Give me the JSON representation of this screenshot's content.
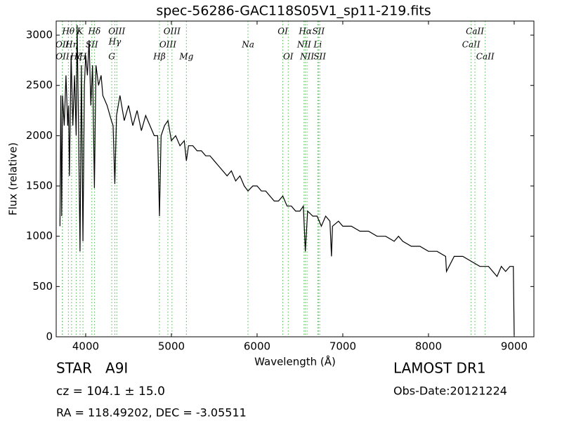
{
  "chart_data": {
    "type": "line",
    "title": "spec-56286-GAC118S05V1_sp11-219.fits",
    "xlabel": "Wavelength (Å)",
    "ylabel": "Flux (relative)",
    "xlim": [
      3656,
      9230
    ],
    "ylim": [
      0,
      3140
    ],
    "xticks": [
      4000,
      5000,
      6000,
      7000,
      8000,
      9000
    ],
    "yticks": [
      0,
      500,
      1000,
      1500,
      2000,
      2500,
      3000
    ],
    "color": "#000000",
    "x": [
      3700,
      3710,
      3720,
      3730,
      3750,
      3770,
      3790,
      3800,
      3810,
      3830,
      3850,
      3870,
      3889,
      3900,
      3915,
      3934,
      3950,
      3968,
      3985,
      4000,
      4020,
      4040,
      4060,
      4080,
      4102,
      4120,
      4150,
      4180,
      4200,
      4250,
      4300,
      4320,
      4340,
      4360,
      4400,
      4450,
      4500,
      4550,
      4600,
      4650,
      4700,
      4750,
      4800,
      4840,
      4861,
      4880,
      4920,
      4960,
      5000,
      5050,
      5100,
      5150,
      5175,
      5200,
      5250,
      5300,
      5350,
      5400,
      5450,
      5500,
      5550,
      5600,
      5650,
      5700,
      5750,
      5800,
      5850,
      5894,
      5950,
      6000,
      6050,
      6100,
      6150,
      6200,
      6250,
      6300,
      6350,
      6400,
      6450,
      6500,
      6540,
      6563,
      6590,
      6650,
      6700,
      6750,
      6800,
      6850,
      6868,
      6880,
      6950,
      7000,
      7100,
      7200,
      7300,
      7400,
      7500,
      7600,
      7650,
      7700,
      7800,
      7900,
      8000,
      8100,
      8200,
      8210,
      8300,
      8400,
      8500,
      8600,
      8700,
      8800,
      8850,
      8900,
      8950,
      8990,
      9000
    ],
    "values": [
      1100,
      2400,
      1200,
      2400,
      2100,
      2600,
      2100,
      2300,
      1600,
      2800,
      2100,
      2600,
      2000,
      3100,
      2200,
      850,
      2700,
      950,
      2500,
      2800,
      2600,
      2950,
      2300,
      2700,
      1480,
      2700,
      2500,
      2600,
      2400,
      2300,
      2150,
      2100,
      1520,
      2200,
      2400,
      2150,
      2300,
      2100,
      2250,
      2050,
      2200,
      2100,
      2000,
      2000,
      1200,
      2000,
      2100,
      2150,
      1950,
      2000,
      1900,
      1950,
      1750,
      1900,
      1900,
      1850,
      1850,
      1800,
      1800,
      1750,
      1700,
      1650,
      1600,
      1650,
      1550,
      1600,
      1500,
      1450,
      1500,
      1500,
      1450,
      1450,
      1400,
      1350,
      1350,
      1400,
      1300,
      1300,
      1250,
      1250,
      1300,
      850,
      1250,
      1200,
      1200,
      1100,
      1200,
      1150,
      800,
      1100,
      1150,
      1100,
      1100,
      1050,
      1050,
      1000,
      1000,
      950,
      1000,
      950,
      900,
      900,
      850,
      850,
      800,
      650,
      800,
      800,
      750,
      700,
      700,
      600,
      700,
      650,
      700,
      700,
      20
    ],
    "line_color": "#4cb84c",
    "lines": [
      {
        "label": "OII",
        "wavelength": 3727
      },
      {
        "label": "OII",
        "wavelength": 3729
      },
      {
        "label": "Hθ",
        "wavelength": 3798
      },
      {
        "label": "Hη",
        "wavelength": 3835
      },
      {
        "label": "Hζ",
        "wavelength": 3889
      },
      {
        "label": "K",
        "wavelength": 3934
      },
      {
        "label": "H",
        "wavelength": 3968
      },
      {
        "label": "SII",
        "wavelength": 4072
      },
      {
        "label": "Hδ",
        "wavelength": 4102
      },
      {
        "label": "G",
        "wavelength": 4304
      },
      {
        "label": "Hγ",
        "wavelength": 4340
      },
      {
        "label": "OIII",
        "wavelength": 4363
      },
      {
        "label": "Hβ",
        "wavelength": 4861
      },
      {
        "label": "OIII",
        "wavelength": 4959
      },
      {
        "label": "OIII",
        "wavelength": 5007
      },
      {
        "label": "Mg",
        "wavelength": 5175
      },
      {
        "label": "Na",
        "wavelength": 5894
      },
      {
        "label": "OI",
        "wavelength": 6300
      },
      {
        "label": "OI",
        "wavelength": 6363
      },
      {
        "label": "NII",
        "wavelength": 6548
      },
      {
        "label": "Hα",
        "wavelength": 6563
      },
      {
        "label": "NII",
        "wavelength": 6583
      },
      {
        "label": "Li",
        "wavelength": 6708
      },
      {
        "label": "SII",
        "wavelength": 6716
      },
      {
        "label": "SII",
        "wavelength": 6731
      },
      {
        "label": "CaII",
        "wavelength": 8498
      },
      {
        "label": "CaII",
        "wavelength": 8542
      },
      {
        "label": "CaII",
        "wavelength": 8662
      }
    ],
    "annotations": [
      "STAR   A9I",
      "cz = 104.1 ± 15.0",
      "RA = 118.49202, DEC = -3.05511",
      "LAMOST DR1",
      "Obs-Date:20121224"
    ]
  }
}
